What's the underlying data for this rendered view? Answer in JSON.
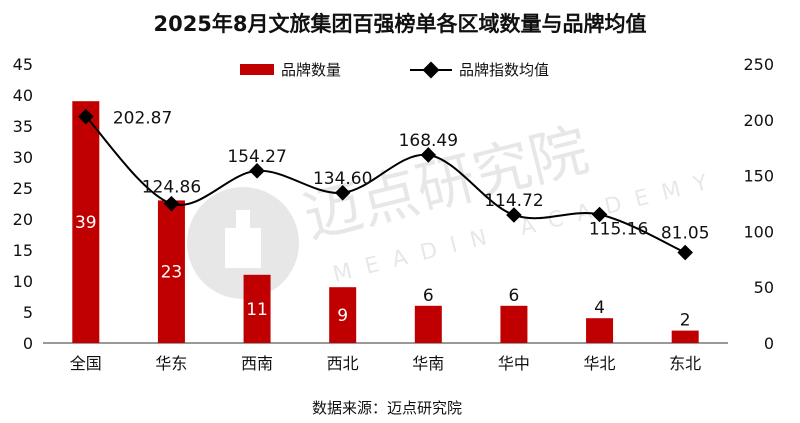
{
  "chart_data": {
    "type": "bar+line",
    "title": "2025年8月文旅集团百强榜单各区域数量与品牌均值",
    "categories": [
      "全国",
      "华东",
      "西南",
      "西北",
      "华南",
      "华中",
      "华北",
      "东北"
    ],
    "series": [
      {
        "name": "品牌数量",
        "type": "bar",
        "axis": "left",
        "values": [
          39,
          23,
          11,
          9,
          6,
          6,
          4,
          2
        ],
        "labels": [
          "39",
          "23",
          "11",
          "9",
          "6",
          "6",
          "4",
          "2"
        ]
      },
      {
        "name": "品牌指数均值",
        "type": "line",
        "axis": "right",
        "values": [
          202.87,
          124.86,
          154.27,
          134.6,
          168.49,
          114.72,
          115.16,
          81.05
        ],
        "labels": [
          "202.87",
          "124.86",
          "154.27",
          "134.60",
          "168.49",
          "114.72",
          "115.16",
          "81.05"
        ]
      }
    ],
    "y_left": {
      "min": 0,
      "max": 45,
      "ticks": [
        "0",
        "5",
        "10",
        "15",
        "20",
        "25",
        "30",
        "35",
        "40",
        "45"
      ]
    },
    "y_right": {
      "min": 0,
      "max": 250,
      "ticks": [
        "0",
        "50",
        "100",
        "150",
        "200",
        "250"
      ]
    },
    "legend_position": "top-center",
    "colors": {
      "bar": "#c00000",
      "line": "#000000",
      "bar_label_light": "#ffffff",
      "bar_label_dark": "#111111"
    }
  },
  "source": "数据来源：迈点研究院",
  "watermark": {
    "cn": "迈点研究院",
    "en": "MEADIN ACADEMY"
  }
}
